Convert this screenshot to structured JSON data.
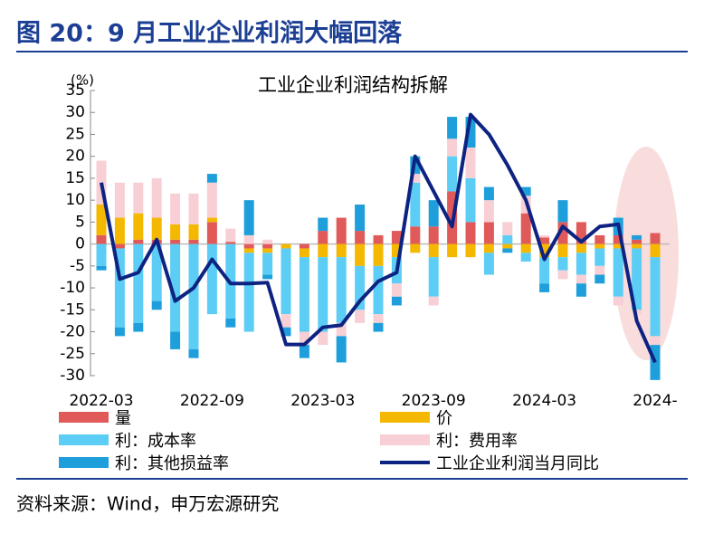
{
  "header": {
    "title": "图 20：9 月工业企业利润大幅回落"
  },
  "source": "资料来源：Wind，申万宏源研究",
  "chart_data": {
    "type": "bar",
    "stacked": true,
    "title": "工业企业利润结构拆解",
    "y_unit": "(%)",
    "categories": [
      "2022-03",
      null,
      null,
      null,
      null,
      null,
      "2022-09",
      null,
      null,
      null,
      null,
      null,
      "2023-03",
      null,
      null,
      null,
      null,
      null,
      "2023-09",
      null,
      null,
      null,
      null,
      null,
      "2024-03",
      null,
      null,
      null,
      null,
      null,
      "2024-"
    ],
    "ylim": [
      -30,
      35
    ],
    "yticks": [
      -30,
      -25,
      -20,
      -15,
      -10,
      -5,
      0,
      5,
      10,
      15,
      20,
      25,
      30,
      35
    ],
    "series": [
      {
        "name": "量",
        "color": "#e05a5a",
        "values": [
          2,
          -1,
          1,
          1,
          1,
          1,
          5,
          0.5,
          -1,
          -1,
          0,
          -1,
          3,
          6,
          3,
          2,
          3,
          4,
          4,
          12,
          5,
          5,
          0,
          7,
          1.5,
          5,
          5,
          2,
          2,
          1,
          2.5
        ]
      },
      {
        "name": "价",
        "color": "#f5b800",
        "values": [
          7,
          6,
          6,
          5,
          3.5,
          3.5,
          1,
          0,
          -1,
          -1,
          -1,
          -2,
          -3,
          -3,
          -5,
          -5,
          -3,
          -2,
          -3,
          -3,
          -3,
          -2,
          -1,
          -2,
          -3,
          -3,
          -2,
          -1,
          -1,
          -1,
          -3
        ]
      },
      {
        "name": "利：成本率",
        "color": "#5ccdf5",
        "values": [
          -5,
          -18,
          -18,
          -13,
          -20,
          -24,
          -16,
          -17,
          -18,
          -5,
          -15,
          -17,
          -17,
          -15,
          -10,
          -11,
          -6,
          10,
          -9,
          8,
          10,
          -5,
          2,
          -2,
          -6,
          -3,
          -5,
          -4,
          -11,
          -14,
          -18
        ]
      },
      {
        "name": "利：费用率",
        "color": "#f7cfd4",
        "values": [
          10,
          8,
          7,
          9,
          7,
          7,
          8,
          3,
          2,
          1,
          -3,
          -3,
          -3,
          -3,
          -3,
          -2,
          -3,
          2,
          -2,
          4,
          7,
          5,
          3,
          4,
          0.5,
          -2,
          -2,
          -2,
          -2,
          -1,
          -2
        ]
      },
      {
        "name": "利：其他损益率",
        "color": "#1e9fdc",
        "values": [
          -1,
          -2,
          -2,
          -2,
          -4,
          -2,
          2,
          -2,
          8,
          -1,
          -2,
          -3,
          3,
          -6,
          6,
          -2,
          -2,
          4,
          6,
          5,
          7,
          3,
          -1,
          2,
          -2,
          5,
          -3,
          -2,
          4,
          1,
          -8
        ]
      },
      {
        "name": "工业企业利润当月同比",
        "type": "line",
        "color": "#0d2382",
        "values": [
          14,
          -8,
          -6.5,
          1,
          -13,
          -10,
          -3.5,
          -9,
          -9,
          -8.8,
          -22.9,
          -22.9,
          -19,
          -18.5,
          -13,
          -8.5,
          -6.5,
          20,
          12,
          4,
          29.5,
          25,
          18,
          10,
          -3.5,
          4,
          0.5,
          4,
          4.5,
          -17.5,
          -27
        ]
      }
    ]
  }
}
